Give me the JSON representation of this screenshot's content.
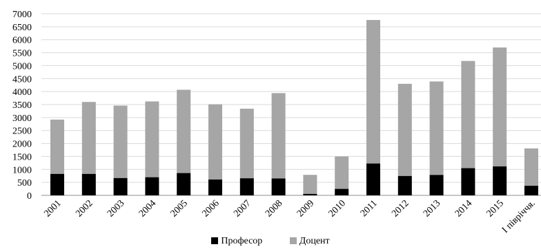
{
  "chart_data": {
    "type": "bar",
    "stacked": true,
    "categories": [
      "2001",
      "2002",
      "2003",
      "2004",
      "2005",
      "2006",
      "2007",
      "2008",
      "2009",
      "2010",
      "2011",
      "2012",
      "2013",
      "2014",
      "2015",
      "І півріччя."
    ],
    "series": [
      {
        "name": "Професор",
        "color": "#000000",
        "values": [
          830,
          830,
          670,
          700,
          860,
          610,
          660,
          650,
          60,
          250,
          1230,
          750,
          790,
          1050,
          1120,
          370
        ]
      },
      {
        "name": "Доцент",
        "color": "#a6a6a6",
        "values": [
          2090,
          2770,
          2790,
          2920,
          3210,
          2900,
          2680,
          3290,
          730,
          1250,
          5530,
          3550,
          3600,
          4130,
          4580,
          1440
        ]
      }
    ],
    "ylim": [
      0,
      7000
    ],
    "yticks": [
      0,
      500,
      1000,
      1500,
      2000,
      2500,
      3000,
      3500,
      4000,
      4500,
      5000,
      5500,
      6000,
      6500,
      7000
    ],
    "grid": true,
    "legend": "bottom"
  }
}
